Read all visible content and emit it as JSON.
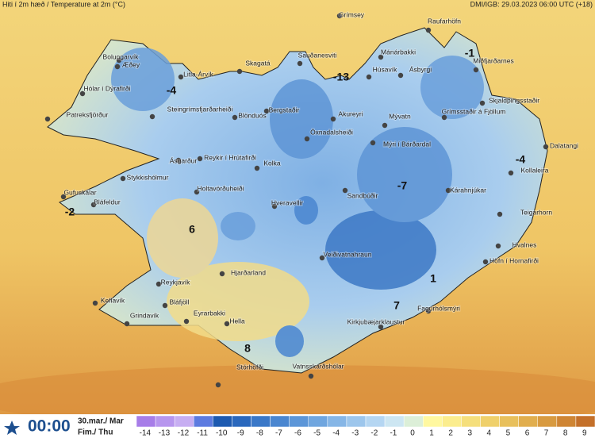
{
  "header": {
    "title": "Hiti í 2m hæð / Temperature at 2m (°C)",
    "source": "DMI/IGB: 29.03.2023 06:00 UTC (+18)"
  },
  "stations": [
    "Grímsey",
    "Raufarhöfn",
    "Mánárbakki",
    "Sauðanesviti",
    "Skagatá",
    "Húsavík",
    "Ásbyrgi",
    "Miðfjarðarnes",
    "Bolungarvík",
    "Æðey",
    "Litla-Árvík",
    "Hólar í Dýrafirði",
    "Patreksfjörður",
    "Steingrímsfjarðarheiði",
    "Blönduós",
    "Bergstaðir",
    "Akureyri",
    "Mývatn",
    "Grímsstaðir á Fjöllum",
    "Skjaldþingsstaðir",
    "Dalatangi",
    "Kollaleira",
    "Öxnadalsheiði",
    "Mýri í Bárðardal",
    "Ásgarður",
    "Reykir í Hrútafirði",
    "Kolka",
    "Stykkishólmur",
    "Gufuskálar",
    "Bláfeldur",
    "Holtavörðuheiði",
    "Sandbúðir",
    "Kárahnjúkar",
    "Teigarhorn",
    "Hveravellir",
    "Hvalnes",
    "Veiðivatnahraun",
    "Höfn í Hornafirði",
    "Hjarðarland",
    "Reykjavík",
    "Keflavík",
    "Bláfjöll",
    "Grindavík",
    "Eyrarbakki",
    "Hella",
    "Kirkjubæjarklaustur",
    "Fagurhólsmýri",
    "Stórhöfði",
    "Vatnsskarðshólar"
  ],
  "map_labels": [
    -4,
    -13,
    -1,
    -4,
    -2,
    -7,
    6,
    8,
    7,
    1
  ],
  "footer": {
    "time": "00:00",
    "date": "30.mar./ Mar",
    "day": "Fim./ Thu"
  },
  "legend": {
    "values": [
      -14,
      -13,
      -12,
      -11,
      -10,
      -9,
      -8,
      -7,
      -6,
      -5,
      -4,
      -3,
      -2,
      -1,
      0,
      1,
      2,
      3,
      4,
      5,
      6,
      7,
      8,
      9
    ],
    "colors": [
      "#a77de8",
      "#b796ee",
      "#c7aef2",
      "#5d7be0",
      "#1d5ab0",
      "#2a68bd",
      "#3a78c8",
      "#4a86d0",
      "#5c96d8",
      "#70a6df",
      "#86b6e6",
      "#9dc6ec",
      "#b5d6f2",
      "#cde6f2",
      "#dcefd8",
      "#fff8a0",
      "#fbed8e",
      "#f5df7c",
      "#efd06b",
      "#e8c05c",
      "#e1ae4e",
      "#d89a40",
      "#cf8534",
      "#c4702a"
    ]
  }
}
